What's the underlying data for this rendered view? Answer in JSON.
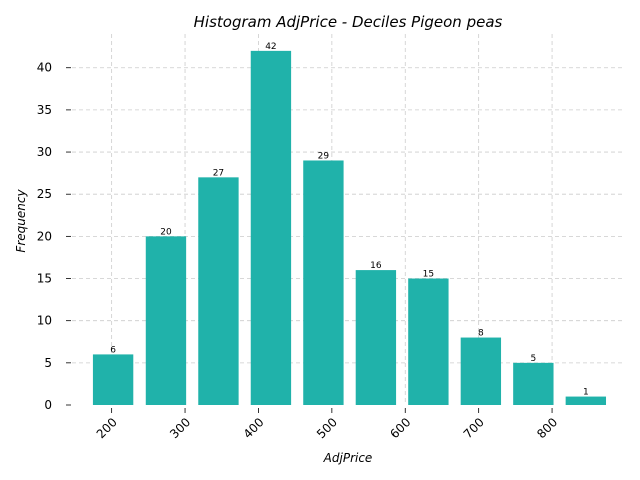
{
  "chart_data": {
    "type": "bar",
    "title": "Histogram AdjPrice - Deciles Pigeon peas",
    "xlabel": "AdjPrice",
    "ylabel": "Frequency",
    "bin_width": 70.5,
    "bins": [
      {
        "x": 202,
        "value": 6
      },
      {
        "x": 274,
        "value": 20
      },
      {
        "x": 345.5,
        "value": 27
      },
      {
        "x": 417,
        "value": 42
      },
      {
        "x": 488.5,
        "value": 29
      },
      {
        "x": 560,
        "value": 16
      },
      {
        "x": 631.5,
        "value": 15
      },
      {
        "x": 703,
        "value": 8
      },
      {
        "x": 774.5,
        "value": 5
      },
      {
        "x": 846,
        "value": 1
      }
    ],
    "xticks": [
      200,
      300,
      400,
      500,
      600,
      700,
      800
    ],
    "yticks": [
      0,
      5,
      10,
      15,
      20,
      25,
      30,
      35,
      40
    ],
    "xlim": [
      146,
      898
    ],
    "ylim": [
      0,
      44
    ],
    "bar_color": "#20b2aa",
    "grid": true
  }
}
